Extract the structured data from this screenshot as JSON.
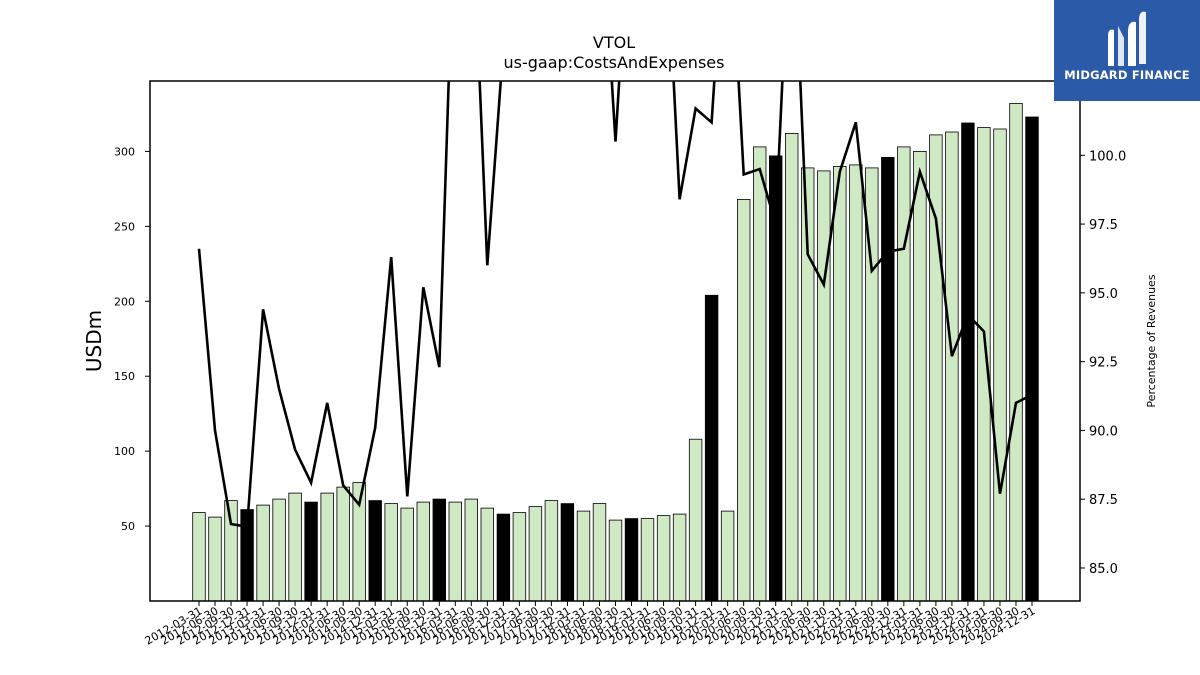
{
  "chart_data": {
    "type": "bar+line",
    "title": "VTOL",
    "subtitle": "us-gaap:CostsAndExpenses",
    "ylabel": "USDm",
    "ylabel_right": "Percentage of Revenues",
    "ylim": [
      0,
      347
    ],
    "ylim_right": [
      83.8,
      102.7
    ],
    "yticks": [
      50,
      100,
      150,
      200,
      250,
      300
    ],
    "yticks_right": [
      85.0,
      87.5,
      90.0,
      92.5,
      95.0,
      97.5,
      100.0
    ],
    "colors": {
      "bar_quarter": "#cfe9c5",
      "bar_annual": "#000000",
      "bar_edge": "#000000",
      "line": "#000000"
    },
    "categories": [
      "2012-03-31",
      "2012-06-30",
      "2012-09-30",
      "2012-12-31",
      "2013-03-31",
      "2013-06-30",
      "2013-09-30",
      "2013-12-31",
      "2014-03-31",
      "2014-06-30",
      "2014-09-30",
      "2014-12-31",
      "2015-03-31",
      "2015-06-30",
      "2015-09-30",
      "2015-12-31",
      "2016-03-31",
      "2016-06-30",
      "2016-09-30",
      "2016-12-31",
      "2017-03-31",
      "2017-06-30",
      "2017-09-30",
      "2017-12-31",
      "2018-03-31",
      "2018-06-30",
      "2018-09-30",
      "2018-12-31",
      "2019-03-31",
      "2019-06-30",
      "2019-09-30",
      "2019-10-31",
      "2019-12-31",
      "2020-03-31",
      "2020-06-30",
      "2020-09-30",
      "2020-12-31",
      "2021-03-31",
      "2021-06-30",
      "2021-09-30",
      "2021-12-31",
      "2022-03-31",
      "2022-06-30",
      "2022-09-30",
      "2022-12-31",
      "2023-03-31",
      "2023-06-30",
      "2023-09-30",
      "2023-12-31",
      "2024-03-31",
      "2024-06-30",
      "2024-09-30",
      "2024-12-31"
    ],
    "bar_values": [
      59,
      56,
      67,
      61,
      64,
      68,
      72,
      66,
      72,
      76,
      79,
      67,
      65,
      62,
      66,
      68,
      66,
      68,
      62,
      58,
      59,
      63,
      67,
      65,
      60,
      65,
      54,
      55,
      55,
      57,
      58,
      108,
      204,
      60,
      268,
      303,
      297,
      312,
      289,
      287,
      290,
      291,
      289,
      296,
      303,
      300,
      311,
      313,
      319,
      316,
      315,
      332,
      323
    ],
    "annual_flags": [
      0,
      0,
      0,
      1,
      0,
      0,
      0,
      1,
      0,
      0,
      0,
      1,
      0,
      0,
      0,
      1,
      0,
      0,
      0,
      1,
      0,
      0,
      0,
      1,
      0,
      0,
      0,
      1,
      0,
      0,
      0,
      0,
      1,
      0,
      0,
      0,
      1,
      0,
      0,
      0,
      0,
      0,
      0,
      1,
      0,
      0,
      0,
      0,
      1,
      0,
      0,
      0,
      1
    ],
    "line_values": [
      96.6,
      90.0,
      86.6,
      86.5,
      94.4,
      91.5,
      89.3,
      88.1,
      91.0,
      88.0,
      87.3,
      90.1,
      96.3,
      87.6,
      95.2,
      92.3,
      110.0,
      110.0,
      96.0,
      104.0,
      110.0,
      110.0,
      110.0,
      110.0,
      110.0,
      110.0,
      100.5,
      110.0,
      110.0,
      110.0,
      98.4,
      101.7,
      101.2,
      110.0,
      99.3,
      99.5,
      97.5,
      110.0,
      96.4,
      95.3,
      99.4,
      101.2,
      95.8,
      96.5,
      96.6,
      99.4,
      97.7,
      92.7,
      94.2,
      93.6,
      87.7,
      91.0,
      91.3
    ],
    "legend": "none",
    "grid": false
  },
  "logo": {
    "text": "MIDGARD FINANCE",
    "bg_color": "#2b5aa8"
  }
}
